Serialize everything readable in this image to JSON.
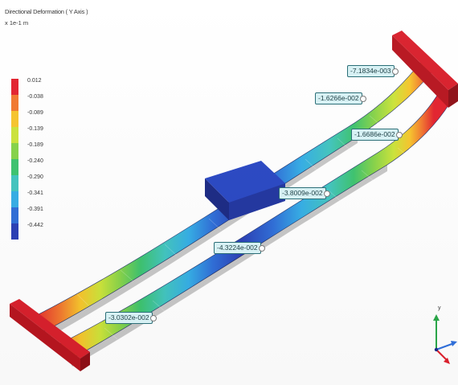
{
  "header": {
    "title": "Directional Deformation ( Y Axis )",
    "unit": "x 1e-1 m"
  },
  "legend": {
    "levels": [
      {
        "label": "0.012",
        "color": "#e3222e"
      },
      {
        "label": "-0.038",
        "color": "#f2782f"
      },
      {
        "label": "-0.089",
        "color": "#f7c52c"
      },
      {
        "label": "-0.139",
        "color": "#cce43a"
      },
      {
        "label": "-0.189",
        "color": "#86d34a"
      },
      {
        "label": "-0.240",
        "color": "#3dc36f"
      },
      {
        "label": "-0.290",
        "color": "#42c5bf"
      },
      {
        "label": "-0.341",
        "color": "#35aee6"
      },
      {
        "label": "-0.391",
        "color": "#2f6ed8"
      },
      {
        "label": "-0.442",
        "color": "#2a3fb5"
      }
    ]
  },
  "probes": [
    {
      "label": "-7.1834e-003"
    },
    {
      "label": "-1.6266e-002"
    },
    {
      "label": "-1.6686e-002"
    },
    {
      "label": "-3.8009e-002"
    },
    {
      "label": "-4.3224e-002"
    },
    {
      "label": "-3.0302e-002"
    }
  ],
  "triad": {
    "axis_label": "y"
  }
}
